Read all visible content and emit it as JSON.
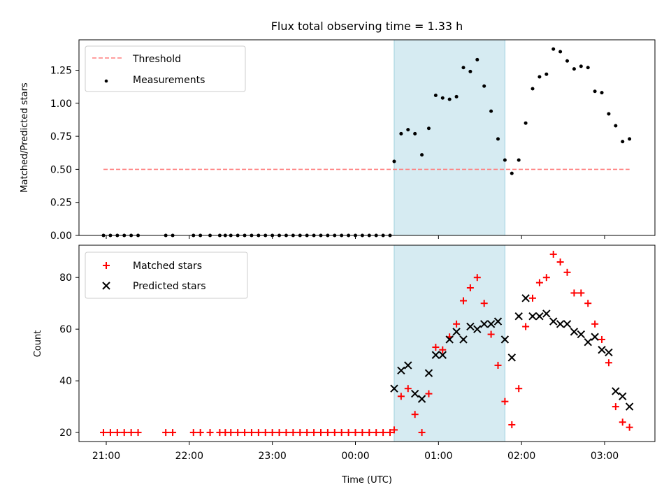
{
  "chart_data": [
    {
      "type": "scatter",
      "title": "Flux total observing time = 1.33 h",
      "ylabel": "Matched/Predicted stars",
      "ylim": [
        0,
        1.48
      ],
      "yticks": [
        0.0,
        0.25,
        0.5,
        0.75,
        1.0,
        1.25
      ],
      "ytick_labels": [
        "0.00",
        "0.25",
        "0.50",
        "0.75",
        "1.00",
        "1.25"
      ],
      "legend_position": "upper-left",
      "highlight_span": [
        "00:28",
        "01:48"
      ],
      "series": [
        {
          "name": "Threshold",
          "style": "dashed-line",
          "color": "#ff7f7f",
          "x": [
            "20:58",
            "03:18"
          ],
          "values": [
            0.5,
            0.5
          ]
        },
        {
          "name": "Measurements",
          "style": "dot",
          "color": "#000000",
          "x": [
            "20:58",
            "21:03",
            "21:08",
            "21:13",
            "21:18",
            "21:23",
            "21:43",
            "21:48",
            "22:03",
            "22:08",
            "22:15",
            "22:22",
            "22:26",
            "22:30",
            "22:35",
            "22:40",
            "22:45",
            "22:50",
            "22:55",
            "23:00",
            "23:05",
            "23:10",
            "23:15",
            "23:20",
            "23:25",
            "23:30",
            "23:35",
            "23:40",
            "23:45",
            "23:50",
            "23:55",
            "00:00",
            "00:05",
            "00:10",
            "00:15",
            "00:20",
            "00:25",
            "00:28",
            "00:33",
            "00:38",
            "00:43",
            "00:48",
            "00:53",
            "00:58",
            "01:03",
            "01:08",
            "01:13",
            "01:18",
            "01:23",
            "01:28",
            "01:33",
            "01:38",
            "01:43",
            "01:48",
            "01:53",
            "01:58",
            "02:03",
            "02:08",
            "02:13",
            "02:18",
            "02:23",
            "02:28",
            "02:33",
            "02:38",
            "02:43",
            "02:48",
            "02:53",
            "02:58",
            "03:03",
            "03:08",
            "03:13",
            "03:18"
          ],
          "values": [
            0,
            0,
            0,
            0,
            0,
            0,
            0,
            0,
            0,
            0,
            0,
            0,
            0,
            0,
            0,
            0,
            0,
            0,
            0,
            0,
            0,
            0,
            0,
            0,
            0,
            0,
            0,
            0,
            0,
            0,
            0,
            0,
            0,
            0,
            0,
            0,
            0,
            0.56,
            0.77,
            0.8,
            0.77,
            0.61,
            0.81,
            1.06,
            1.04,
            1.03,
            1.05,
            1.27,
            1.24,
            1.33,
            1.13,
            0.94,
            0.73,
            0.57,
            0.47,
            0.57,
            0.85,
            1.11,
            1.2,
            1.22,
            1.41,
            1.39,
            1.32,
            1.26,
            1.28,
            1.27,
            1.09,
            1.08,
            0.92,
            0.83,
            0.71,
            0.73
          ]
        }
      ]
    },
    {
      "type": "scatter",
      "xlabel": "Time (UTC)",
      "ylabel": "Count",
      "ylim": [
        16.5,
        92.5
      ],
      "yticks": [
        20,
        40,
        60,
        80
      ],
      "ytick_labels": [
        "20",
        "40",
        "60",
        "80"
      ],
      "xticks": [
        "21:00",
        "22:00",
        "23:00",
        "00:00",
        "01:00",
        "02:00",
        "03:00"
      ],
      "legend_position": "upper-left",
      "highlight_span": [
        "00:28",
        "01:48"
      ],
      "series": [
        {
          "name": "Matched stars",
          "marker": "plus",
          "color": "#ff0000",
          "x": [
            "20:58",
            "21:03",
            "21:08",
            "21:13",
            "21:18",
            "21:23",
            "21:43",
            "21:48",
            "22:03",
            "22:08",
            "22:15",
            "22:22",
            "22:26",
            "22:30",
            "22:35",
            "22:40",
            "22:45",
            "22:50",
            "22:55",
            "23:00",
            "23:05",
            "23:10",
            "23:15",
            "23:20",
            "23:25",
            "23:30",
            "23:35",
            "23:40",
            "23:45",
            "23:50",
            "23:55",
            "00:00",
            "00:05",
            "00:10",
            "00:15",
            "00:20",
            "00:25",
            "00:28",
            "00:33",
            "00:38",
            "00:43",
            "00:48",
            "00:53",
            "00:58",
            "01:03",
            "01:08",
            "01:13",
            "01:18",
            "01:23",
            "01:28",
            "01:33",
            "01:38",
            "01:43",
            "01:48",
            "01:53",
            "01:58",
            "02:03",
            "02:08",
            "02:13",
            "02:18",
            "02:23",
            "02:28",
            "02:33",
            "02:38",
            "02:43",
            "02:48",
            "02:53",
            "02:58",
            "03:03",
            "03:08",
            "03:13",
            "03:18"
          ],
          "values": [
            20,
            20,
            20,
            20,
            20,
            20,
            20,
            20,
            20,
            20,
            20,
            20,
            20,
            20,
            20,
            20,
            20,
            20,
            20,
            20,
            20,
            20,
            20,
            20,
            20,
            20,
            20,
            20,
            20,
            20,
            20,
            20,
            20,
            20,
            20,
            20,
            20,
            21,
            34,
            37,
            27,
            20,
            35,
            53,
            52,
            57,
            62,
            71,
            76,
            80,
            70,
            58,
            46,
            32,
            23,
            37,
            61,
            72,
            78,
            80,
            89,
            86,
            82,
            74,
            74,
            70,
            62,
            56,
            47,
            30,
            24,
            22
          ]
        },
        {
          "name": "Predicted stars",
          "marker": "x",
          "color": "#000000",
          "x": [
            "00:28",
            "00:33",
            "00:38",
            "00:43",
            "00:48",
            "00:53",
            "00:58",
            "01:03",
            "01:08",
            "01:13",
            "01:18",
            "01:23",
            "01:28",
            "01:33",
            "01:38",
            "01:43",
            "01:48",
            "01:53",
            "01:58",
            "02:03",
            "02:08",
            "02:13",
            "02:18",
            "02:23",
            "02:28",
            "02:33",
            "02:38",
            "02:43",
            "02:48",
            "02:53",
            "02:58",
            "03:03",
            "03:08",
            "03:13",
            "03:18"
          ],
          "values": [
            37,
            44,
            46,
            35,
            33,
            43,
            50,
            50,
            56,
            59,
            56,
            61,
            60,
            62,
            62,
            63,
            56,
            49,
            65,
            72,
            65,
            65,
            66,
            63,
            62,
            62,
            59,
            58,
            55,
            57,
            52,
            51,
            36,
            34,
            30
          ]
        }
      ]
    }
  ]
}
